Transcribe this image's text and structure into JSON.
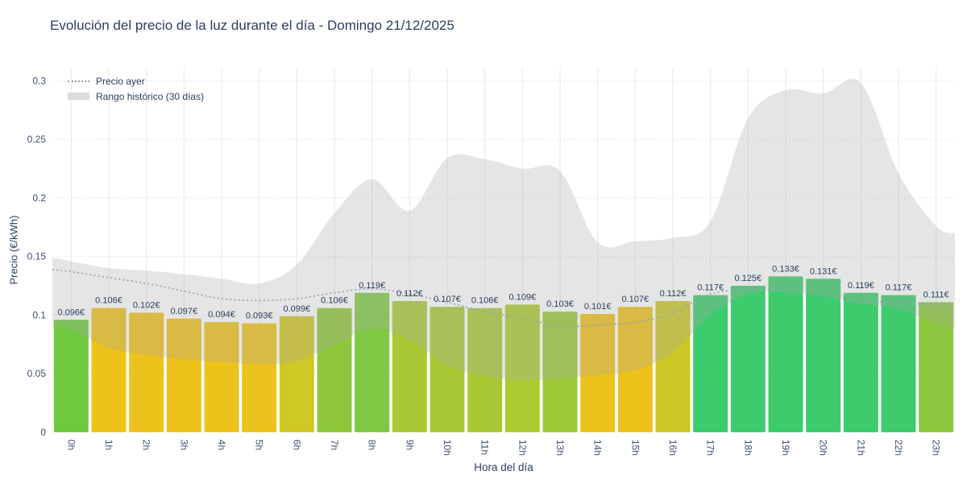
{
  "title": "Evolución del precio de la luz durante el día - Domingo 21/12/2025",
  "legend": {
    "precio_ayer": "Precio ayer",
    "rango_historico": "Rango histórico (30 días)"
  },
  "axes": {
    "x_title": "Hora del día",
    "y_title": "Precio (€/kWh)",
    "y_ticks": [
      "0",
      "0.05",
      "0.1",
      "0.15",
      "0.2",
      "0.25",
      "0.3"
    ]
  },
  "chart_data": {
    "type": "bar",
    "title": "Evolución del precio de la luz durante el día - Domingo 21/12/2025",
    "xlabel": "Hora del día",
    "ylabel": "Precio (€/kWh)",
    "ylim": [
      0,
      0.3
    ],
    "grid": true,
    "legend_position": "top-left",
    "categories": [
      "0h",
      "1h",
      "2h",
      "3h",
      "4h",
      "5h",
      "6h",
      "7h",
      "8h",
      "9h",
      "10h",
      "11h",
      "12h",
      "13h",
      "14h",
      "15h",
      "16h",
      "17h",
      "18h",
      "19h",
      "20h",
      "21h",
      "22h",
      "23h"
    ],
    "bar_values": [
      0.096,
      0.106,
      0.102,
      0.097,
      0.094,
      0.093,
      0.099,
      0.106,
      0.119,
      0.112,
      0.107,
      0.106,
      0.109,
      0.103,
      0.101,
      0.107,
      0.112,
      0.117,
      0.125,
      0.133,
      0.131,
      0.119,
      0.117,
      0.111
    ],
    "bar_label_suffix": "€",
    "bar_colors": [
      "#70c83e",
      "#edc21b",
      "#edc21b",
      "#edc21b",
      "#edc21b",
      "#ebc31c",
      "#cfc825",
      "#8fc73c",
      "#7dc944",
      "#a9c934",
      "#a9c934",
      "#a9c934",
      "#adca32",
      "#9cc838",
      "#edc21b",
      "#edc21b",
      "#cbc724",
      "#3dcb6e",
      "#3dcb6e",
      "#3dcb6e",
      "#3dcb6e",
      "#3dcb6e",
      "#3dcb6e",
      "#8cc83e"
    ],
    "series": [
      {
        "name": "Precio ayer",
        "type": "line",
        "style": "dotted",
        "color": "#98a2b3",
        "x": [
          -0.5,
          0,
          1,
          2,
          3,
          4,
          5,
          6,
          7,
          8,
          9,
          10,
          11,
          12,
          13,
          14,
          15,
          16,
          17,
          18,
          19,
          20,
          21,
          22,
          23,
          23.5
        ],
        "values": [
          0.139,
          0.137,
          0.132,
          0.127,
          0.1205,
          0.114,
          0.1125,
          0.114,
          0.119,
          0.1225,
          0.118,
          0.111,
          0.103,
          0.0975,
          0.0905,
          0.0915,
          0.094,
          0.102,
          0.118,
          0.1215,
          0.1203,
          0.1165,
          0.1117,
          0.111,
          0.1078,
          0.1055
        ]
      },
      {
        "name": "Rango histórico (30 días)",
        "type": "band",
        "color": "rgba(168,168,168,0.30)",
        "x": [
          -0.5,
          0,
          1,
          2,
          3,
          4,
          5,
          6,
          7,
          8,
          9,
          10,
          11,
          12,
          13,
          14,
          15,
          16,
          17,
          18,
          19,
          20,
          21,
          22,
          23,
          23.5
        ],
        "upper": [
          0.149,
          0.146,
          0.14,
          0.138,
          0.135,
          0.131,
          0.127,
          0.143,
          0.187,
          0.216,
          0.189,
          0.234,
          0.233,
          0.225,
          0.223,
          0.162,
          0.163,
          0.166,
          0.18,
          0.268,
          0.292,
          0.289,
          0.298,
          0.221,
          0.176,
          0.17
        ],
        "lower": [
          0.09,
          0.088,
          0.072,
          0.066,
          0.062,
          0.06,
          0.058,
          0.061,
          0.075,
          0.088,
          0.079,
          0.057,
          0.048,
          0.0445,
          0.046,
          0.049,
          0.053,
          0.068,
          0.1,
          0.118,
          0.12,
          0.117,
          0.11,
          0.105,
          0.093,
          0.088
        ]
      }
    ],
    "text_color": "#2a3f5f",
    "tick_color": "#3d4f6e",
    "h_grid_color": "#dfe5f0",
    "v_grid_color": "#e7e7e7"
  }
}
